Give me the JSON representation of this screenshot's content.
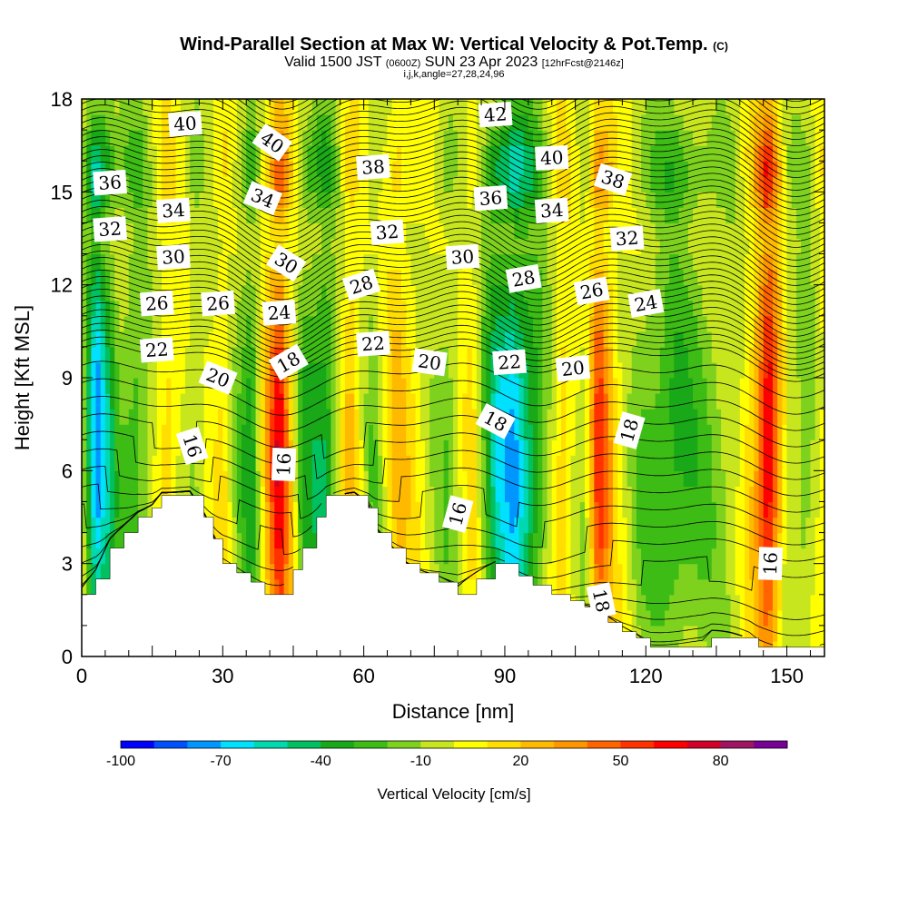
{
  "title": {
    "main": "Wind-Parallel Section at Max W: Vertical Velocity & Pot.Temp.",
    "copyright": "(C)",
    "valid_prefix": "Valid 1500 JST",
    "valid_utc": "(0600Z)",
    "valid_date": "SUN 23 Apr 2023",
    "forecast": "[12hrFcst@2146z]",
    "params": "i,j,k,angle=27,28,24,96"
  },
  "chart_data": {
    "type": "heatmap",
    "xlabel": "Distance [nm]",
    "ylabel": "Height [Kft MSL]",
    "xlim": [
      0,
      158
    ],
    "ylim": [
      0,
      18
    ],
    "x_ticks": [
      0,
      30,
      60,
      90,
      120,
      150
    ],
    "y_ticks": [
      0,
      3,
      6,
      9,
      12,
      15,
      18
    ],
    "colorbar": {
      "label": "Vertical Velocity [cm/s]",
      "tick_labels": [
        "-100",
        "-70",
        "-40",
        "-10",
        "20",
        "50",
        "80"
      ],
      "tick_values": [
        -100,
        -70,
        -40,
        -10,
        20,
        50,
        80
      ],
      "colors": [
        "#0000ff",
        "#0050ff",
        "#0096ff",
        "#00e0ff",
        "#00d8b0",
        "#00c060",
        "#18a818",
        "#3cbc14",
        "#7ed21e",
        "#c8e61e",
        "#ffff00",
        "#ffde00",
        "#ffba00",
        "#ff9600",
        "#ff6400",
        "#ff3200",
        "#ff0000",
        "#d20028",
        "#a01464",
        "#780096"
      ]
    },
    "vertical_velocity_columns": [
      {
        "x": 0,
        "w": -5
      },
      {
        "x": 3,
        "w": -80
      },
      {
        "x": 8,
        "w": -20
      },
      {
        "x": 12,
        "w": -30
      },
      {
        "x": 18,
        "w": 20
      },
      {
        "x": 24,
        "w": -15
      },
      {
        "x": 30,
        "w": 15
      },
      {
        "x": 36,
        "w": -40
      },
      {
        "x": 42,
        "w": 75
      },
      {
        "x": 47,
        "w": -30
      },
      {
        "x": 52,
        "w": -45
      },
      {
        "x": 57,
        "w": 30
      },
      {
        "x": 62,
        "w": -20
      },
      {
        "x": 67,
        "w": 25
      },
      {
        "x": 72,
        "w": 5
      },
      {
        "x": 78,
        "w": -20
      },
      {
        "x": 83,
        "w": 15
      },
      {
        "x": 88,
        "w": -55
      },
      {
        "x": 92,
        "w": -75
      },
      {
        "x": 97,
        "w": -35
      },
      {
        "x": 102,
        "w": 20
      },
      {
        "x": 107,
        "w": -10
      },
      {
        "x": 110,
        "w": 60
      },
      {
        "x": 114,
        "w": 10
      },
      {
        "x": 119,
        "w": -20
      },
      {
        "x": 126,
        "w": -35
      },
      {
        "x": 133,
        "w": -20
      },
      {
        "x": 139,
        "w": -10
      },
      {
        "x": 143,
        "w": 25
      },
      {
        "x": 146,
        "w": 80
      },
      {
        "x": 150,
        "w": -5
      },
      {
        "x": 154,
        "w": -20
      },
      {
        "x": 158,
        "w": 10
      }
    ],
    "terrain": [
      {
        "x": 0,
        "h": 2.0
      },
      {
        "x": 3,
        "h": 2.5
      },
      {
        "x": 6,
        "h": 3.5
      },
      {
        "x": 9,
        "h": 4.0
      },
      {
        "x": 12,
        "h": 4.5
      },
      {
        "x": 15,
        "h": 4.8
      },
      {
        "x": 17,
        "h": 5.2
      },
      {
        "x": 23,
        "h": 5.2
      },
      {
        "x": 26,
        "h": 4.5
      },
      {
        "x": 28,
        "h": 3.8
      },
      {
        "x": 30,
        "h": 3.0
      },
      {
        "x": 33,
        "h": 2.7
      },
      {
        "x": 36,
        "h": 2.4
      },
      {
        "x": 39,
        "h": 2.0
      },
      {
        "x": 42,
        "h": 2.0
      },
      {
        "x": 45,
        "h": 2.8
      },
      {
        "x": 47,
        "h": 3.5
      },
      {
        "x": 50,
        "h": 4.5
      },
      {
        "x": 52,
        "h": 5.2
      },
      {
        "x": 58,
        "h": 5.2
      },
      {
        "x": 61,
        "h": 4.8
      },
      {
        "x": 63,
        "h": 4.0
      },
      {
        "x": 66,
        "h": 3.5
      },
      {
        "x": 69,
        "h": 3.0
      },
      {
        "x": 72,
        "h": 2.7
      },
      {
        "x": 76,
        "h": 2.4
      },
      {
        "x": 80,
        "h": 2.0
      },
      {
        "x": 84,
        "h": 2.5
      },
      {
        "x": 88,
        "h": 3.0
      },
      {
        "x": 91,
        "h": 3.0
      },
      {
        "x": 93,
        "h": 2.6
      },
      {
        "x": 96,
        "h": 2.3
      },
      {
        "x": 100,
        "h": 2.0
      },
      {
        "x": 104,
        "h": 1.8
      },
      {
        "x": 107,
        "h": 1.6
      },
      {
        "x": 110,
        "h": 1.4
      },
      {
        "x": 112,
        "h": 1.1
      },
      {
        "x": 115,
        "h": 0.8
      },
      {
        "x": 118,
        "h": 0.6
      },
      {
        "x": 121,
        "h": 0.3
      },
      {
        "x": 132,
        "h": 0.3
      },
      {
        "x": 134,
        "h": 0.6
      },
      {
        "x": 142,
        "h": 0.6
      },
      {
        "x": 144,
        "h": 0.3
      },
      {
        "x": 158,
        "h": 0.3
      }
    ],
    "theta_contours": {
      "levels_from": 10,
      "levels_to": 46,
      "step": 0.5,
      "labels": [
        {
          "x": 22,
          "y": 17.2,
          "text": "40",
          "rot": -4
        },
        {
          "x": 40.5,
          "y": 16.6,
          "text": "40",
          "rot": 35
        },
        {
          "x": 88,
          "y": 17.5,
          "text": "42",
          "rot": -4
        },
        {
          "x": 100,
          "y": 16.1,
          "text": "40",
          "rot": -3
        },
        {
          "x": 113,
          "y": 15.4,
          "text": "38",
          "rot": 18
        },
        {
          "x": 6,
          "y": 15.3,
          "text": "36",
          "rot": -4
        },
        {
          "x": 62,
          "y": 15.8,
          "text": "38",
          "rot": -4
        },
        {
          "x": 87,
          "y": 14.8,
          "text": "36",
          "rot": -4
        },
        {
          "x": 38.5,
          "y": 14.8,
          "text": "34",
          "rot": 22
        },
        {
          "x": 19.5,
          "y": 14.4,
          "text": "34",
          "rot": -4
        },
        {
          "x": 100,
          "y": 14.4,
          "text": "34",
          "rot": -4
        },
        {
          "x": 6,
          "y": 13.8,
          "text": "32",
          "rot": -4
        },
        {
          "x": 65,
          "y": 13.7,
          "text": "32",
          "rot": -4
        },
        {
          "x": 116,
          "y": 13.5,
          "text": "32",
          "rot": -4
        },
        {
          "x": 19.5,
          "y": 12.9,
          "text": "30",
          "rot": -4
        },
        {
          "x": 43.5,
          "y": 12.7,
          "text": "30",
          "rot": 32
        },
        {
          "x": 81,
          "y": 12.9,
          "text": "30",
          "rot": -4
        },
        {
          "x": 59.5,
          "y": 12.0,
          "text": "28",
          "rot": -18
        },
        {
          "x": 94,
          "y": 12.2,
          "text": "28",
          "rot": -10
        },
        {
          "x": 108.5,
          "y": 11.8,
          "text": "26",
          "rot": -10
        },
        {
          "x": 16,
          "y": 11.4,
          "text": "26",
          "rot": -4
        },
        {
          "x": 29,
          "y": 11.4,
          "text": "26",
          "rot": -4
        },
        {
          "x": 42,
          "y": 11.1,
          "text": "24",
          "rot": -4
        },
        {
          "x": 120,
          "y": 11.4,
          "text": "24",
          "rot": -10
        },
        {
          "x": 16,
          "y": 9.9,
          "text": "22",
          "rot": -4
        },
        {
          "x": 62,
          "y": 10.1,
          "text": "22",
          "rot": -4
        },
        {
          "x": 91,
          "y": 9.5,
          "text": "22",
          "rot": -4
        },
        {
          "x": 29,
          "y": 9.0,
          "text": "20",
          "rot": 22
        },
        {
          "x": 74,
          "y": 9.5,
          "text": "20",
          "rot": 8
        },
        {
          "x": 104.5,
          "y": 9.3,
          "text": "20",
          "rot": -6
        },
        {
          "x": 44,
          "y": 9.5,
          "text": "18",
          "rot": -30
        },
        {
          "x": 88,
          "y": 7.6,
          "text": "18",
          "rot": 28
        },
        {
          "x": 116.5,
          "y": 7.3,
          "text": "18",
          "rot": -74
        },
        {
          "x": 110.5,
          "y": 1.8,
          "text": "18",
          "rot": 78
        },
        {
          "x": 23.5,
          "y": 6.8,
          "text": "16",
          "rot": 72
        },
        {
          "x": 43,
          "y": 6.2,
          "text": "16",
          "rot": -88
        },
        {
          "x": 80,
          "y": 4.6,
          "text": "16",
          "rot": -75
        },
        {
          "x": 146.5,
          "y": 3.0,
          "text": "16",
          "rot": -88
        }
      ]
    }
  }
}
